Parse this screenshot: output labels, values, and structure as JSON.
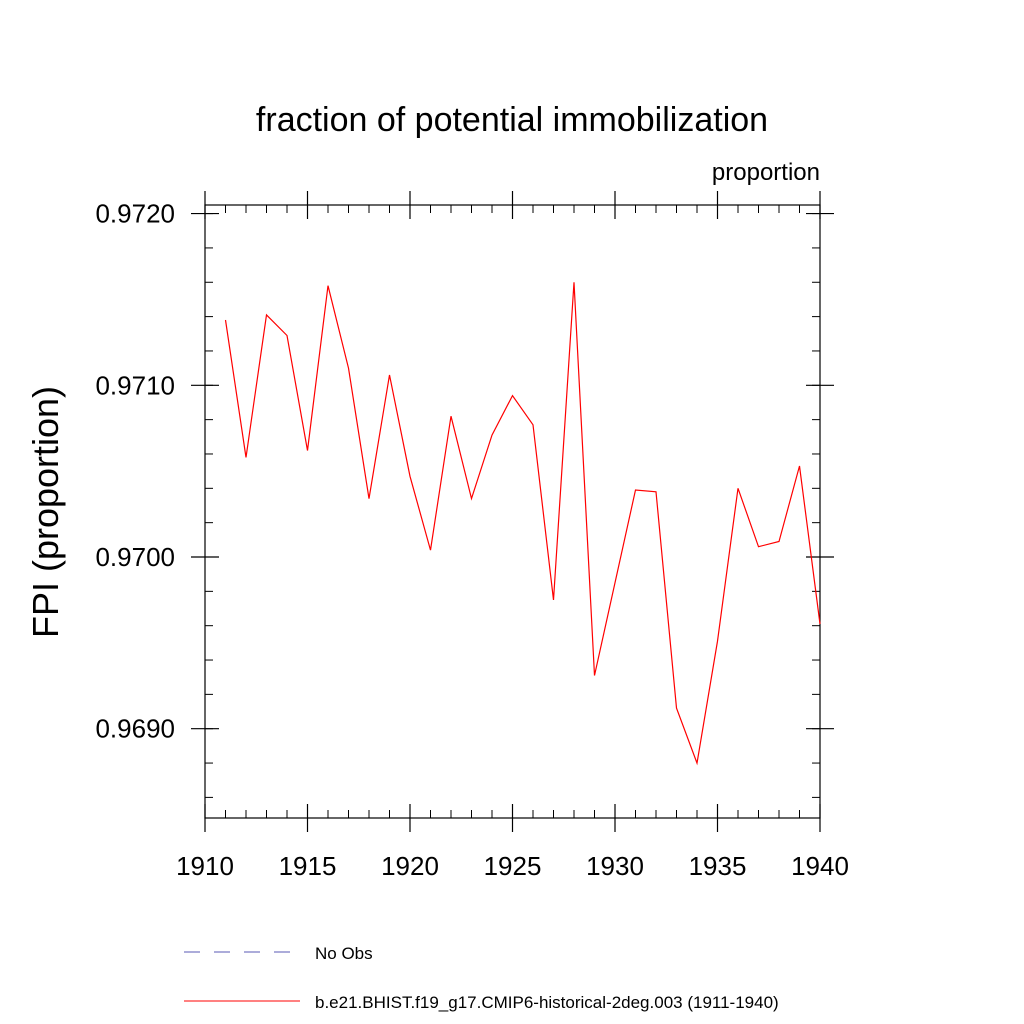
{
  "chart_data": {
    "type": "line",
    "title": "fraction of potential immobilization",
    "subtitle": "proportion",
    "xlabel": "",
    "ylabel": "FPI  (proportion)",
    "xlim": [
      1910,
      1940
    ],
    "ylim": [
      0.96848,
      0.97205
    ],
    "x_ticks": [
      1910,
      1915,
      1920,
      1925,
      1930,
      1935,
      1940
    ],
    "x_tick_labels": [
      "1910",
      "1915",
      "1920",
      "1925",
      "1930",
      "1935",
      "1940"
    ],
    "y_ticks": [
      0.969,
      0.97,
      0.971,
      0.972
    ],
    "y_tick_labels": [
      "0.9690",
      "0.9700",
      "0.9710",
      "0.9720"
    ],
    "y_minor_step": 0.0002,
    "x_minor_step": 1,
    "grid": false,
    "legend_position": "bottom",
    "series": [
      {
        "name": "b.e21.BHIST.f19_g17.CMIP6-historical-2deg.003 (1911-1940)",
        "color": "#ff0000",
        "style": "solid",
        "x": [
          1911,
          1912,
          1913,
          1914,
          1915,
          1916,
          1917,
          1918,
          1919,
          1920,
          1921,
          1922,
          1923,
          1924,
          1925,
          1926,
          1927,
          1928,
          1929,
          1930,
          1931,
          1932,
          1933,
          1934,
          1935,
          1936,
          1937,
          1938,
          1939,
          1940
        ],
        "values": [
          0.97138,
          0.97058,
          0.97141,
          0.97129,
          0.97062,
          0.97158,
          0.9711,
          0.97034,
          0.97106,
          0.97047,
          0.97004,
          0.97082,
          0.97034,
          0.97071,
          0.97094,
          0.97077,
          0.96975,
          0.9716,
          0.96931,
          0.96985,
          0.97039,
          0.97038,
          0.96912,
          0.9688,
          0.96951,
          0.9704,
          0.97006,
          0.97009,
          0.97053,
          0.96961
        ]
      }
    ],
    "legend": [
      {
        "label": "No Obs",
        "color": "#5a5ab4",
        "style": "dashed"
      },
      {
        "label": "b.e21.BHIST.f19_g17.CMIP6-historical-2deg.003 (1911-1940)",
        "color": "#ff0000",
        "style": "solid"
      }
    ]
  }
}
